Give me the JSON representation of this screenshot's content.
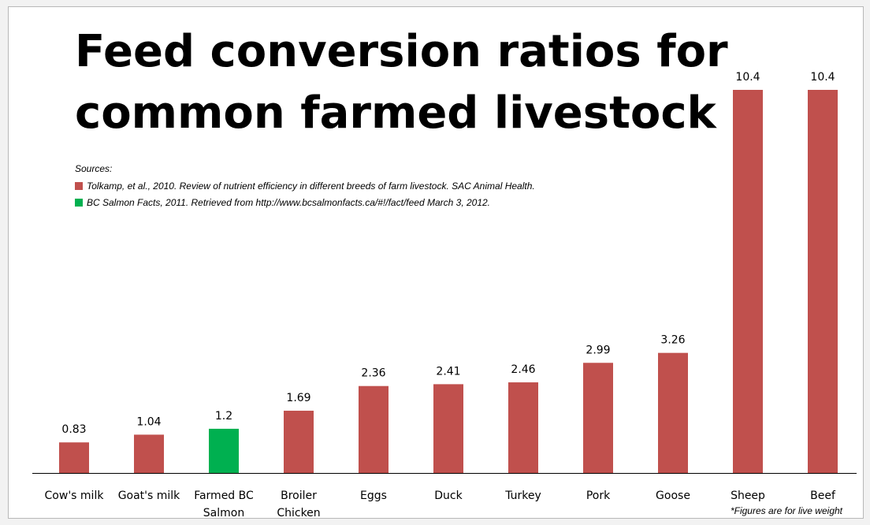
{
  "chart_data": {
    "type": "bar",
    "title": [
      "Feed conversion ratios for",
      "common farmed livestock"
    ],
    "categories": [
      [
        "Cow's milk"
      ],
      [
        "Goat's milk"
      ],
      [
        "Farmed BC",
        "Salmon"
      ],
      [
        "Broiler",
        "Chicken"
      ],
      [
        "Eggs"
      ],
      [
        "Duck"
      ],
      [
        "Turkey"
      ],
      [
        "Pork"
      ],
      [
        "Goose"
      ],
      [
        "Sheep"
      ],
      [
        "Beef"
      ]
    ],
    "values": [
      0.83,
      1.04,
      1.2,
      1.69,
      2.36,
      2.41,
      2.46,
      2.99,
      3.26,
      10.4,
      10.4
    ],
    "value_labels": [
      "0.83",
      "1.04",
      "1.2",
      "1.69",
      "2.36",
      "2.41",
      "2.46",
      "2.99",
      "3.26",
      "10.4",
      "10.4"
    ],
    "bar_colors": [
      "#c0504d",
      "#c0504d",
      "#00b050",
      "#c0504d",
      "#c0504d",
      "#c0504d",
      "#c0504d",
      "#c0504d",
      "#c0504d",
      "#c0504d",
      "#c0504d"
    ],
    "ylim": [
      0,
      10.4
    ],
    "grid": false,
    "xlabel": "",
    "ylabel": ""
  },
  "sources": {
    "heading": "Sources:",
    "items": [
      {
        "color": "#c0504d",
        "text": "Tolkamp, et al., 2010. Review of nutrient efficiency in different breeds of farm livestock. SAC Animal Health."
      },
      {
        "color": "#00b050",
        "text": "BC Salmon Facts, 2011. Retrieved from http://www.bcsalmonfacts.ca/#!/fact/feed March 3, 2012."
      }
    ]
  },
  "footnote": "*Figures are for live weight"
}
